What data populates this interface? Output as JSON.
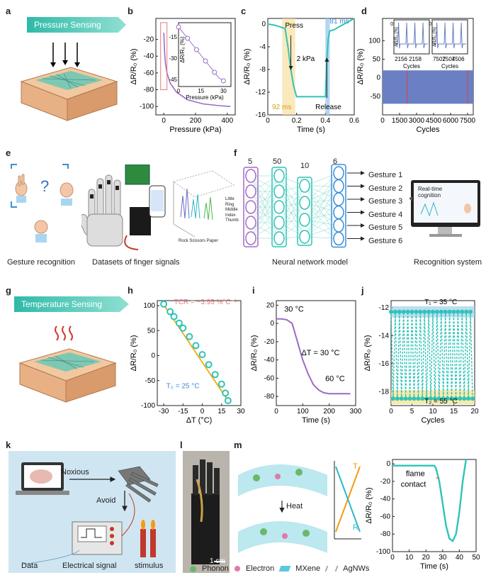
{
  "panel_labels": {
    "a": "a",
    "b": "b",
    "c": "c",
    "d": "d",
    "e": "e",
    "f": "f",
    "g": "g",
    "h": "h",
    "i": "i",
    "j": "j",
    "k": "k",
    "l": "l",
    "m": "m"
  },
  "banners": {
    "pressure": "Pressure Sensing",
    "temperature": "Temperature Sensing"
  },
  "panel_e": {
    "caption_gesture": "Gesture recognition",
    "caption_datasets": "Datasets of finger signals",
    "fingers": [
      "Little",
      "Ring",
      "Middle",
      "Index",
      "Thumb"
    ],
    "actions": "Rock Scissors Paper"
  },
  "panel_f": {
    "layers": [
      "5",
      "50",
      "10",
      "6"
    ],
    "outputs": [
      "Gesture 1",
      "Gesture 2",
      "Gesture 3",
      "Gesture 4",
      "Gesture 5",
      "Gesture 6"
    ],
    "caption": "Neural network model",
    "monitor_text": "Real-time cognition",
    "caption_system": "Recognition system"
  },
  "panel_k": {
    "noxious": "Noxious",
    "avoid": "Avoid",
    "data": "Data",
    "signal": "Electrical signal",
    "stimulus": "stimulus"
  },
  "panel_l": {
    "scale": "1 cm"
  },
  "panel_m": {
    "heat": "Heat",
    "T": "T",
    "R": "R",
    "legend": [
      "Phonon",
      "Electron",
      "MXene",
      "AgNWs"
    ],
    "flame": "flame contact"
  },
  "chart_data": [
    {
      "id": "b",
      "type": "line",
      "xlabel": "Pressure (kPa)",
      "ylabel": "ΔR/R₀ (%)",
      "xlim": [
        -50,
        450
      ],
      "ylim": [
        -110,
        5
      ],
      "xticks": [
        0,
        200,
        400
      ],
      "yticks": [
        -20,
        -40,
        -60,
        -80,
        -100
      ],
      "series": [
        {
          "x": [
            0,
            5,
            10,
            20,
            40,
            80,
            150,
            250,
            350,
            420
          ],
          "y": [
            -12,
            -35,
            -48,
            -60,
            -72,
            -83,
            -92,
            -97,
            -99,
            -100
          ]
        }
      ],
      "inset": {
        "xlabel": "Pressure (kPa)",
        "ylabel": "ΔR/R₀ (%)",
        "xticks": [
          0,
          15,
          30
        ],
        "yticks": [
          -15,
          -30,
          -45
        ],
        "x": [
          0,
          3,
          6,
          9,
          12,
          15,
          18,
          21,
          24,
          27,
          30
        ],
        "y": [
          -8,
          -12,
          -16,
          -20,
          -24,
          -28,
          -32,
          -36,
          -40,
          -44,
          -46
        ]
      }
    },
    {
      "id": "c",
      "type": "line",
      "xlabel": "Time (s)",
      "ylabel": "ΔR/R₀ (%)",
      "xlim": [
        0,
        0.6
      ],
      "ylim": [
        -16,
        1
      ],
      "xticks": [
        0.0,
        0.2,
        0.4,
        0.6
      ],
      "yticks": [
        0,
        -4,
        -8,
        -12,
        -16
      ],
      "annotations": [
        "Press",
        "2 kPa",
        "92 ms",
        "81 ms",
        "Release"
      ],
      "series": [
        {
          "x": [
            0,
            0.05,
            0.1,
            0.12,
            0.14,
            0.16,
            0.18,
            0.2,
            0.3,
            0.38,
            0.4,
            0.41,
            0.42,
            0.43,
            0.46,
            0.5,
            0.6
          ],
          "y": [
            0,
            -0.2,
            -0.6,
            -0.8,
            -4,
            -8,
            -11,
            -12.8,
            -12.8,
            -12.8,
            -12.8,
            -6,
            -2.5,
            -1.2,
            -1,
            -0.4,
            1
          ]
        }
      ]
    },
    {
      "id": "d",
      "type": "line",
      "xlabel": "Cycles",
      "ylabel": "ΔR/R₀ (%)",
      "xlim": [
        0,
        8000
      ],
      "ylim": [
        -100,
        160
      ],
      "xticks": [
        0,
        1500,
        3000,
        4500,
        6000,
        7500
      ],
      "yticks": [
        100,
        50,
        0,
        -50
      ],
      "inset_left": {
        "xlabel": "Cycles",
        "xticks": [
          2156,
          2158
        ],
        "ylabel": "ΔR/R₀ (%)",
        "yticks": [
          0
        ]
      },
      "inset_right": {
        "xlabel": "Cycles",
        "xticks": [
          7502,
          7504,
          7506
        ],
        "ylabel": "ΔR/R₀ (%)",
        "yticks": [
          0
        ]
      },
      "band": {
        "top": 20,
        "bottom": -70
      }
    },
    {
      "id": "h",
      "type": "scatter",
      "xlabel": "ΔT (°C)",
      "ylabel": "ΔR/R₀ (%)",
      "xlim": [
        -35,
        30
      ],
      "ylim": [
        -100,
        110
      ],
      "xticks": [
        -30,
        -15,
        0,
        15,
        30
      ],
      "yticks": [
        100,
        50,
        0,
        -50,
        -100
      ],
      "annotations": [
        "TCR = −3.95 %°C⁻¹",
        "T₀ = 25 °C"
      ],
      "series": [
        {
          "x": [
            -30,
            -25,
            -22,
            -18,
            -15,
            -10,
            -5,
            0,
            5,
            10,
            15,
            18,
            20
          ],
          "y": [
            103,
            88,
            78,
            65,
            55,
            38,
            20,
            2,
            -18,
            -38,
            -57,
            -75,
            -90
          ]
        }
      ]
    },
    {
      "id": "i",
      "type": "line",
      "xlabel": "Time (s)",
      "ylabel": "ΔR/R₀ (%)",
      "xlim": [
        0,
        300
      ],
      "ylim": [
        -90,
        25
      ],
      "xticks": [
        0,
        100,
        200,
        300
      ],
      "yticks": [
        20,
        0,
        -20,
        -40,
        -60,
        -80
      ],
      "annotations": [
        "30 °C",
        "ΔT = 30 °C",
        "60 °C"
      ],
      "series": [
        {
          "x": [
            0,
            20,
            40,
            60,
            80,
            100,
            120,
            140,
            160,
            180,
            200,
            240,
            280
          ],
          "y": [
            5,
            5,
            4,
            0,
            -20,
            -40,
            -55,
            -67,
            -73,
            -76,
            -77,
            -77,
            -77
          ]
        }
      ]
    },
    {
      "id": "j",
      "type": "line",
      "xlabel": "Cycles",
      "ylabel": "ΔR/R₀ (%)",
      "xlim": [
        0,
        20
      ],
      "ylim": [
        -19,
        -11.5
      ],
      "xticks": [
        0,
        5,
        10,
        15,
        20
      ],
      "yticks": [
        -12,
        -14,
        -16,
        -18
      ],
      "annotations": [
        "T₁ = 35 °C",
        "T₂ = 55 °C"
      ],
      "series": [
        {
          "x": [
            0,
            1,
            2,
            3,
            4,
            5,
            6,
            7,
            8,
            9,
            10,
            11,
            12,
            13,
            14,
            15,
            16,
            17,
            18,
            19
          ],
          "high": -12.3,
          "low": -18.5
        }
      ]
    },
    {
      "id": "m",
      "type": "line",
      "xlabel": "Time (s)",
      "ylabel": "ΔR/R₀ (%)",
      "xlim": [
        0,
        50
      ],
      "ylim": [
        -100,
        5
      ],
      "xticks": [
        0,
        10,
        20,
        30,
        40,
        50
      ],
      "yticks": [
        0,
        -20,
        -40,
        -60,
        -80,
        -100
      ],
      "series": [
        {
          "x": [
            0,
            5,
            10,
            15,
            20,
            25,
            26,
            28,
            30,
            32,
            34,
            36,
            38,
            40,
            42,
            44
          ],
          "y": [
            -2,
            -2,
            -2,
            -2,
            -2,
            -2,
            -5,
            -20,
            -45,
            -70,
            -85,
            -88,
            -80,
            -55,
            -20,
            5
          ]
        }
      ]
    }
  ]
}
